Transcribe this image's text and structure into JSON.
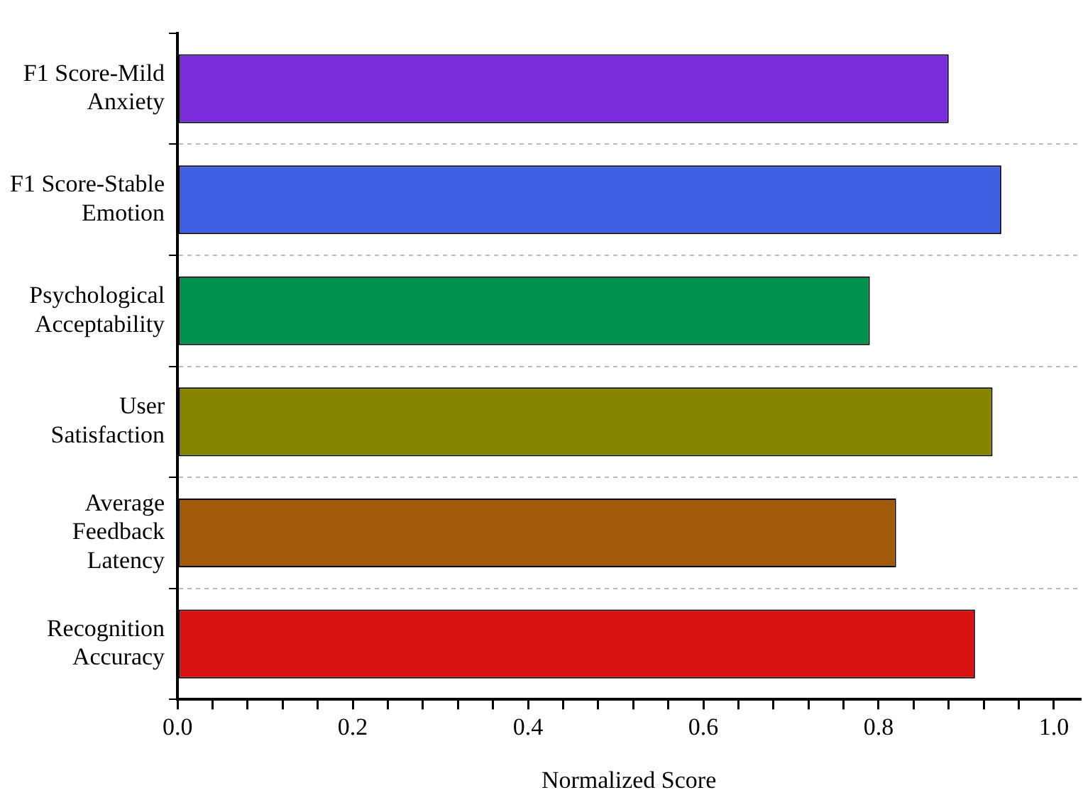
{
  "chart_data": {
    "type": "bar",
    "orientation": "horizontal",
    "xlabel": "Normalized Score",
    "categories": [
      "F1 Score-Mild Anxiety",
      "F1 Score-Stable Emotion",
      "Psychological Acceptability",
      "User Satisfaction",
      "Average Feedback Latency",
      "Recognition Accuracy"
    ],
    "values": [
      0.88,
      0.94,
      0.79,
      0.93,
      0.82,
      0.91
    ],
    "colors": [
      "#7b2cdd",
      "#4060e4",
      "#00914f",
      "#858500",
      "#a15a09",
      "#d71010"
    ],
    "xlim": [
      0,
      1.03
    ],
    "xticks": [
      {
        "value": 0,
        "label": "0.0"
      },
      {
        "value": 0.04,
        "label": null
      },
      {
        "value": 0.08,
        "label": null
      },
      {
        "value": 0.12,
        "label": null
      },
      {
        "value": 0.16,
        "label": null
      },
      {
        "value": 0.2,
        "label": "0.2"
      },
      {
        "value": 0.24,
        "label": null
      },
      {
        "value": 0.28,
        "label": null
      },
      {
        "value": 0.32,
        "label": null
      },
      {
        "value": 0.36,
        "label": null
      },
      {
        "value": 0.4,
        "label": "0.4"
      },
      {
        "value": 0.44,
        "label": null
      },
      {
        "value": 0.48,
        "label": null
      },
      {
        "value": 0.52,
        "label": null
      },
      {
        "value": 0.56,
        "label": null
      },
      {
        "value": 0.6,
        "label": "0.6"
      },
      {
        "value": 0.64,
        "label": null
      },
      {
        "value": 0.68,
        "label": null
      },
      {
        "value": 0.72,
        "label": null
      },
      {
        "value": 0.76,
        "label": null
      },
      {
        "value": 0.8,
        "label": "0.8"
      },
      {
        "value": 0.84,
        "label": null
      },
      {
        "value": 0.88,
        "label": null
      },
      {
        "value": 0.92,
        "label": null
      },
      {
        "value": 0.96,
        "label": null
      },
      {
        "value": 1,
        "label": "1.0"
      }
    ],
    "grid": "y",
    "legend": false
  }
}
